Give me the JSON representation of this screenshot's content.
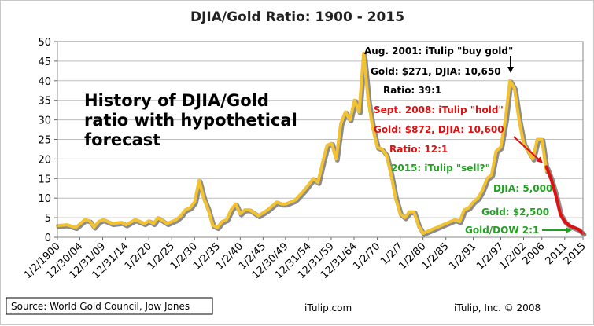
{
  "chart_data": {
    "type": "line",
    "title": "DJIA/Gold Ratio: 1900 - 2015",
    "ylim": [
      0,
      50
    ],
    "yticks": [
      0,
      5,
      10,
      15,
      20,
      25,
      30,
      35,
      40,
      45,
      50
    ],
    "xlim": [
      1900,
      2015
    ],
    "xtick_labels": [
      "1/2/1900",
      "12/30/04",
      "12/31/09",
      "12/31/14",
      "1/2/20",
      "1/2/25",
      "1/2/30",
      "1/2/35",
      "1/2/40",
      "1/2/45",
      "12/30/49",
      "12/31/54",
      "12/31/59",
      "12/31/64",
      "1/2/70",
      "1/2/7",
      "1/2/80",
      "1/2/85",
      "1/2/91",
      "1/2/97",
      "1/2/02",
      "2006",
      "2011",
      "2015"
    ],
    "xtick_years": [
      1900,
      1904.9,
      1909.9,
      1914.9,
      1920,
      1925,
      1930,
      1935,
      1940,
      1945,
      1949.9,
      1954.9,
      1959.9,
      1964.9,
      1970,
      1975,
      1980,
      1985,
      1991,
      1997,
      2002,
      2006,
      2011,
      2015
    ],
    "grid": "horizontal",
    "series": [
      {
        "color": "#f2c230",
        "x": [
          1900,
          1902,
          1904,
          1906,
          1907,
          1908,
          1909,
          1910,
          1912,
          1914,
          1915,
          1917,
          1919,
          1920,
          1921,
          1922,
          1924,
          1926,
          1927,
          1928,
          1929,
          1930,
          1931,
          1932,
          1933,
          1934,
          1935,
          1936,
          1937,
          1938,
          1939,
          1940,
          1941,
          1942,
          1944,
          1946,
          1947,
          1948,
          1949,
          1950,
          1951,
          1952,
          1954,
          1955,
          1956,
          1957,
          1958,
          1959,
          1960,
          1961,
          1962,
          1963,
          1964,
          1965,
          1966,
          1967,
          1968,
          1969,
          1970,
          1971,
          1972,
          1973,
          1974,
          1975,
          1976,
          1977,
          1978,
          1979,
          1980,
          1981,
          1982,
          1983,
          1984,
          1985,
          1986,
          1987,
          1988,
          1989,
          1990,
          1991,
          1992,
          1993,
          1994,
          1995,
          1996,
          1997,
          1998,
          1999,
          2000,
          2001,
          2002,
          2003,
          2004,
          2005,
          2006,
          2007
        ],
        "y": [
          3,
          3.2,
          2.5,
          4.5,
          4.2,
          2.6,
          4,
          4.5,
          3.5,
          3.8,
          3.2,
          4.5,
          3.5,
          4.2,
          3.5,
          5,
          3.5,
          4.5,
          5.5,
          7,
          7.5,
          9,
          14.5,
          10,
          7,
          3,
          2.5,
          4,
          4.5,
          7,
          8.5,
          6,
          7,
          7,
          5.5,
          7,
          8,
          9,
          8.5,
          8.5,
          9,
          9.5,
          12,
          13.5,
          15,
          14,
          19,
          23.5,
          24,
          20,
          29,
          32,
          30,
          35,
          32,
          47,
          35,
          28,
          23,
          22.5,
          21,
          16,
          10,
          6,
          5,
          6.5,
          6.5,
          3,
          1,
          1.5,
          2,
          2.5,
          3,
          3.5,
          4,
          4.5,
          4,
          7,
          7.5,
          9,
          10,
          12,
          15,
          16,
          22,
          23,
          30,
          40,
          38,
          30,
          24,
          22,
          20,
          25,
          25,
          17
        ]
      },
      {
        "color": "#e01010",
        "x": [
          2007,
          2008,
          2009,
          2010,
          2011,
          2012,
          2013,
          2014,
          2015
        ],
        "y": [
          18,
          15,
          11,
          6,
          4,
          3,
          2.5,
          2,
          1
        ]
      }
    ],
    "annotations": [
      {
        "text": "Aug. 2001: iTulip \"buy gold\"",
        "color": "#000000"
      },
      {
        "text": "Gold: $271, DJIA: 10,650",
        "color": "#000000"
      },
      {
        "text": "Ratio: 39:1",
        "color": "#000000"
      },
      {
        "text": "Sept. 2008: iTulip \"hold\"",
        "color": "#e01010"
      },
      {
        "text": "Gold: $872, DJIA: 10,600",
        "color": "#e01010"
      },
      {
        "text": "Ratio: 12:1",
        "color": "#e01010"
      },
      {
        "text": "2015: iTulip \"sell?\"",
        "color": "#22a022"
      },
      {
        "text": "DJIA: 5,000",
        "color": "#22a022"
      },
      {
        "text": "Gold: $2,500",
        "color": "#22a022"
      },
      {
        "text": "Gold/DOW 2:1",
        "color": "#22a022"
      }
    ],
    "overlay_text": [
      "History of DJIA/Gold",
      "ratio with hypothetical",
      "forecast"
    ]
  },
  "footer": {
    "source": "Source: World Gold Council, Jow Jones",
    "site": "iTulip.com",
    "copyright": "iTulip, Inc. © 2008"
  }
}
